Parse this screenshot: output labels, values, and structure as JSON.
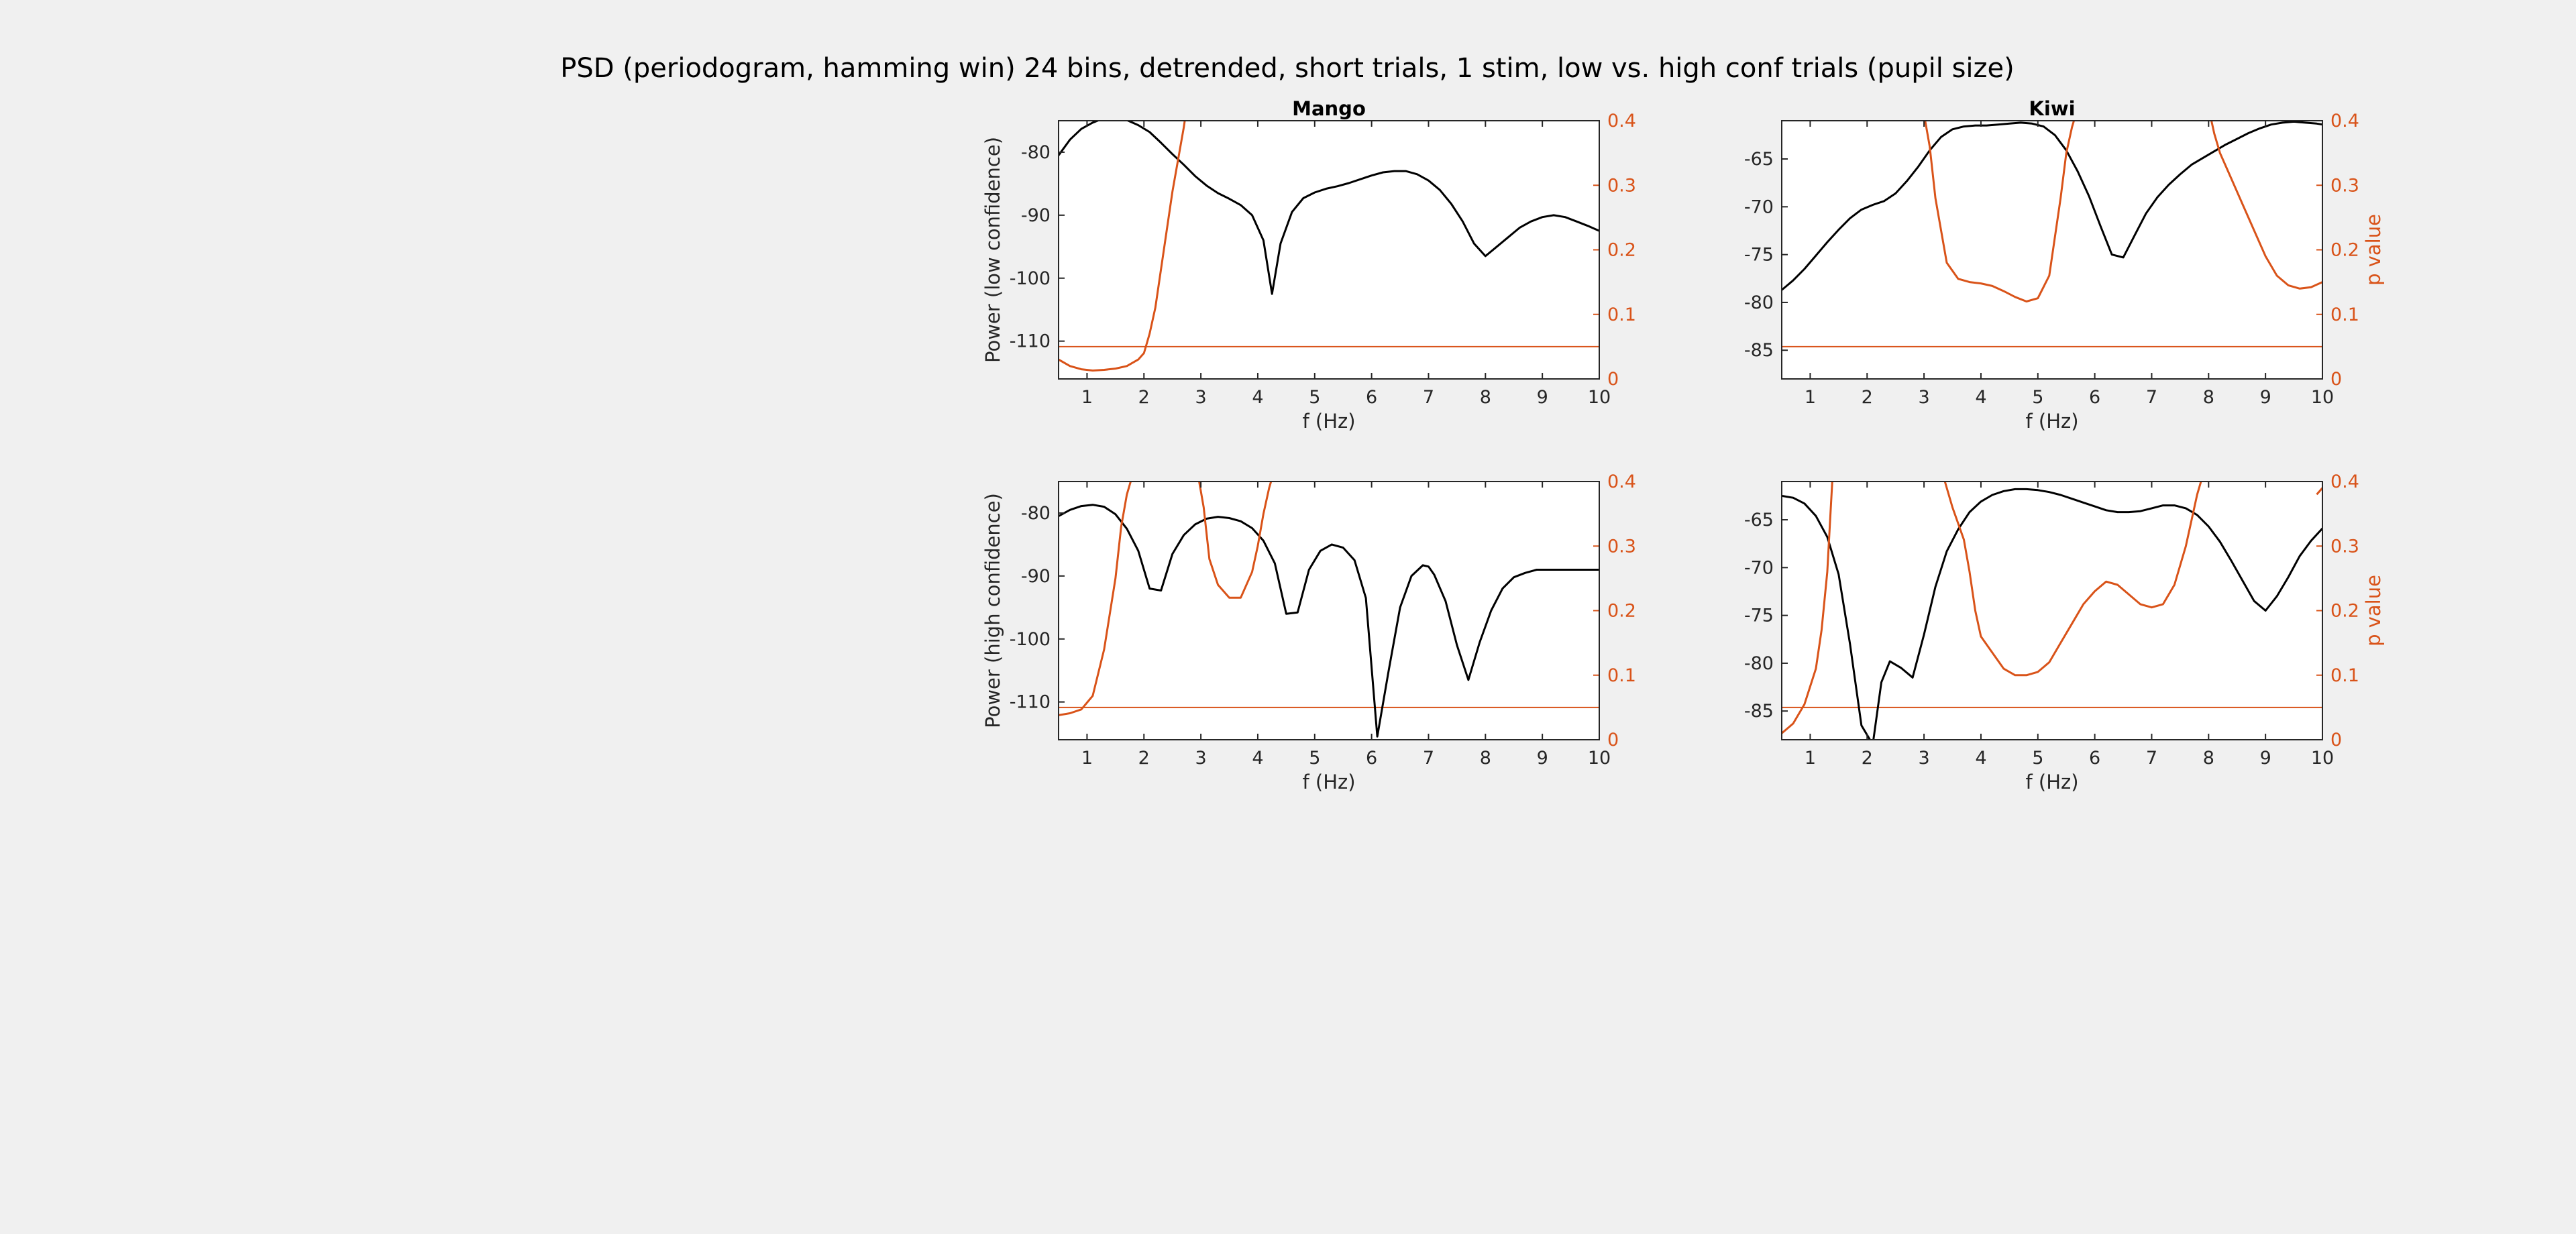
{
  "figure": {
    "title": "PSD (periodogram, hamming win) 24 bins, detrended, short trials, 1 stim, low vs. high conf trials (pupil size)"
  },
  "colors": {
    "background": "#f0f0f0",
    "axes_bg": "#ffffff",
    "power": "#000000",
    "pvalue": "#d95319"
  },
  "chart_data": [
    {
      "type": "line",
      "title": "Mango",
      "xlabel": "f (Hz)",
      "ylabel": "Power (low confidence)",
      "ylabel_right": "",
      "xlim": [
        0.5,
        10
      ],
      "ylim": [
        -116,
        -75
      ],
      "ylim_right": [
        0,
        0.4
      ],
      "xticks": [
        1,
        2,
        3,
        4,
        5,
        6,
        7,
        8,
        9,
        10
      ],
      "yticks": [
        -110,
        -100,
        -90,
        -80
      ],
      "yticks_right": [
        0,
        0.1,
        0.2,
        0.3,
        0.4
      ],
      "significance_threshold": 0.05,
      "series": [
        {
          "axis": "left",
          "x": [
            0.5,
            0.7,
            0.9,
            1.1,
            1.3,
            1.5,
            1.7,
            1.9,
            2.1,
            2.3,
            2.5,
            2.7,
            2.9,
            3.1,
            3.3,
            3.5,
            3.7,
            3.9,
            4.1,
            4.25,
            4.4,
            4.6,
            4.8,
            5.0,
            5.2,
            5.4,
            5.6,
            5.8,
            6.0,
            6.2,
            6.4,
            6.6,
            6.8,
            7.0,
            7.2,
            7.4,
            7.6,
            7.8,
            8.0,
            8.2,
            8.4,
            8.6,
            8.8,
            9.0,
            9.2,
            9.4,
            9.6,
            9.8,
            10.0
          ],
          "y": [
            -80.5,
            -78.0,
            -76.3,
            -75.3,
            -74.6,
            -74.5,
            -74.9,
            -75.7,
            -76.8,
            -78.5,
            -80.3,
            -82.0,
            -83.8,
            -85.3,
            -86.5,
            -87.4,
            -88.4,
            -90.0,
            -94.0,
            -102.5,
            -94.5,
            -89.5,
            -87.3,
            -86.4,
            -85.8,
            -85.4,
            -84.9,
            -84.3,
            -83.7,
            -83.2,
            -83.0,
            -83.0,
            -83.5,
            -84.5,
            -86.0,
            -88.2,
            -91.0,
            -94.5,
            -96.5,
            -95.0,
            -93.5,
            -92.0,
            -91.0,
            -90.3,
            -90.0,
            -90.3,
            -91.0,
            -91.7,
            -92.5
          ]
        },
        {
          "axis": "right",
          "x": [
            0.5,
            0.7,
            0.9,
            1.1,
            1.3,
            1.5,
            1.7,
            1.9,
            2.0,
            2.1,
            2.2,
            2.3,
            2.4,
            2.5,
            2.6,
            2.7,
            2.75
          ],
          "y": [
            0.03,
            0.02,
            0.015,
            0.013,
            0.014,
            0.016,
            0.02,
            0.03,
            0.04,
            0.07,
            0.11,
            0.17,
            0.23,
            0.29,
            0.34,
            0.39,
            0.42
          ]
        }
      ]
    },
    {
      "type": "line",
      "title": "Kiwi",
      "xlabel": "f (Hz)",
      "ylabel": "",
      "ylabel_right": "p value",
      "xlim": [
        0.5,
        10
      ],
      "ylim": [
        -88,
        -61
      ],
      "ylim_right": [
        0,
        0.4
      ],
      "xticks": [
        1,
        2,
        3,
        4,
        5,
        6,
        7,
        8,
        9,
        10
      ],
      "yticks": [
        -85,
        -80,
        -75,
        -70,
        -65
      ],
      "yticks_right": [
        0,
        0.1,
        0.2,
        0.3,
        0.4
      ],
      "significance_threshold": 0.05,
      "series": [
        {
          "axis": "left",
          "x": [
            0.5,
            0.7,
            0.9,
            1.1,
            1.3,
            1.5,
            1.7,
            1.9,
            2.1,
            2.3,
            2.5,
            2.7,
            2.9,
            3.1,
            3.3,
            3.5,
            3.7,
            3.9,
            4.1,
            4.3,
            4.5,
            4.7,
            4.9,
            5.1,
            5.3,
            5.5,
            5.7,
            5.9,
            6.1,
            6.3,
            6.5,
            6.7,
            6.9,
            7.1,
            7.3,
            7.5,
            7.7,
            7.9,
            8.1,
            8.3,
            8.5,
            8.7,
            8.9,
            9.1,
            9.3,
            9.5,
            9.7,
            9.9,
            10.0
          ],
          "y": [
            -78.7,
            -77.7,
            -76.5,
            -75.1,
            -73.7,
            -72.4,
            -71.2,
            -70.3,
            -69.8,
            -69.4,
            -68.6,
            -67.3,
            -65.8,
            -64.1,
            -62.7,
            -61.9,
            -61.6,
            -61.5,
            -61.5,
            -61.4,
            -61.3,
            -61.2,
            -61.3,
            -61.6,
            -62.5,
            -64.1,
            -66.3,
            -68.9,
            -72.0,
            -75.0,
            -75.3,
            -73.0,
            -70.7,
            -69.0,
            -67.7,
            -66.6,
            -65.6,
            -64.9,
            -64.2,
            -63.5,
            -62.9,
            -62.3,
            -61.8,
            -61.4,
            -61.2,
            -61.1,
            -61.2,
            -61.3,
            -61.4
          ]
        },
        {
          "axis": "right",
          "x": [
            3.0,
            3.1,
            3.2,
            3.4,
            3.6,
            3.8,
            4.0,
            4.2,
            4.4,
            4.6,
            4.8,
            5.0,
            5.2,
            5.4,
            5.5,
            5.6,
            5.7
          ],
          "y": [
            0.41,
            0.36,
            0.28,
            0.18,
            0.155,
            0.15,
            0.148,
            0.144,
            0.136,
            0.127,
            0.12,
            0.125,
            0.16,
            0.28,
            0.35,
            0.39,
            0.42
          ],
          "x2": [
            8.0,
            8.1,
            8.2,
            8.4,
            8.6,
            8.8,
            9.0,
            9.2,
            9.4,
            9.6,
            9.8,
            10.0
          ],
          "y2": [
            0.42,
            0.38,
            0.35,
            0.31,
            0.27,
            0.23,
            0.19,
            0.16,
            0.145,
            0.14,
            0.142,
            0.15
          ]
        }
      ]
    },
    {
      "type": "line",
      "title": "",
      "xlabel": "f (Hz)",
      "ylabel": "Power (high confidence)",
      "ylabel_right": "",
      "xlim": [
        0.5,
        10
      ],
      "ylim": [
        -116,
        -75
      ],
      "ylim_right": [
        0,
        0.4
      ],
      "xticks": [
        1,
        2,
        3,
        4,
        5,
        6,
        7,
        8,
        9,
        10
      ],
      "yticks": [
        -110,
        -100,
        -90,
        -80
      ],
      "yticks_right": [
        0,
        0.1,
        0.2,
        0.3,
        0.4
      ],
      "significance_threshold": 0.05,
      "series": [
        {
          "axis": "left",
          "x": [
            0.5,
            0.7,
            0.9,
            1.1,
            1.3,
            1.5,
            1.7,
            1.9,
            2.1,
            2.3,
            2.5,
            2.7,
            2.9,
            3.1,
            3.3,
            3.5,
            3.7,
            3.9,
            4.1,
            4.3,
            4.5,
            4.7,
            4.9,
            5.1,
            5.3,
            5.5,
            5.7,
            5.9,
            6.1,
            6.3,
            6.5,
            6.7,
            6.9,
            7.0,
            7.1,
            7.3,
            7.5,
            7.7,
            7.9,
            8.1,
            8.3,
            8.5,
            8.7,
            8.9,
            9.0,
            9.1,
            9.3,
            9.5,
            9.7,
            9.9,
            10.0
          ],
          "y": [
            -80.5,
            -79.5,
            -78.9,
            -78.7,
            -79.0,
            -80.2,
            -82.5,
            -86.0,
            -92.0,
            -92.3,
            -86.5,
            -83.5,
            -81.8,
            -80.9,
            -80.6,
            -80.8,
            -81.3,
            -82.4,
            -84.4,
            -88.0,
            -96.0,
            -95.8,
            -89.0,
            -86.0,
            -85.0,
            -85.5,
            -87.5,
            -93.5,
            -115.5,
            -105.0,
            -95.0,
            -90.0,
            -88.3,
            -88.5,
            -89.8,
            -94.0,
            -101.0,
            -106.5,
            -100.5,
            -95.5,
            -92.0,
            -90.2,
            -89.5,
            -89.0,
            -89.0,
            -89.0,
            -89.0,
            -89.0,
            -89.0,
            -89.0,
            -89.0
          ]
        },
        {
          "axis": "right",
          "x": [
            0.5,
            0.7,
            0.9,
            1.1,
            1.3,
            1.5,
            1.6,
            1.7,
            1.8,
            1.85
          ],
          "y": [
            0.038,
            0.041,
            0.047,
            0.068,
            0.14,
            0.25,
            0.33,
            0.38,
            0.41,
            0.42
          ],
          "x2": [
            2.95,
            3.05,
            3.15,
            3.3,
            3.5,
            3.7,
            3.9,
            4.0,
            4.1,
            4.2,
            4.3
          ],
          "y2": [
            0.41,
            0.36,
            0.28,
            0.24,
            0.22,
            0.22,
            0.26,
            0.3,
            0.35,
            0.39,
            0.42
          ]
        }
      ]
    },
    {
      "type": "line",
      "title": "",
      "xlabel": "f (Hz)",
      "ylabel": "",
      "ylabel_right": "p value",
      "xlim": [
        0.5,
        10
      ],
      "ylim": [
        -88,
        -61
      ],
      "ylim_right": [
        0,
        0.4
      ],
      "xticks": [
        1,
        2,
        3,
        4,
        5,
        6,
        7,
        8,
        9,
        10
      ],
      "yticks": [
        -85,
        -80,
        -75,
        -70,
        -65
      ],
      "yticks_right": [
        0,
        0.1,
        0.2,
        0.3,
        0.4
      ],
      "significance_threshold": 0.05,
      "series": [
        {
          "axis": "left",
          "x": [
            0.5,
            0.7,
            0.9,
            1.1,
            1.3,
            1.5,
            1.7,
            1.9,
            2.1,
            2.25,
            2.4,
            2.6,
            2.8,
            3.0,
            3.2,
            3.4,
            3.6,
            3.8,
            4.0,
            4.2,
            4.4,
            4.6,
            4.8,
            5.0,
            5.2,
            5.4,
            5.6,
            5.8,
            6.0,
            6.2,
            6.4,
            6.6,
            6.8,
            7.0,
            7.2,
            7.4,
            7.6,
            7.8,
            8.0,
            8.2,
            8.4,
            8.6,
            8.8,
            9.0,
            9.2,
            9.4,
            9.6,
            9.8,
            10.0
          ],
          "y": [
            -62.5,
            -62.7,
            -63.3,
            -64.6,
            -66.8,
            -70.7,
            -78.0,
            -86.5,
            -88.5,
            -82.0,
            -79.8,
            -80.5,
            -81.5,
            -77.0,
            -72.0,
            -68.3,
            -66.0,
            -64.2,
            -63.1,
            -62.4,
            -62.0,
            -61.8,
            -61.8,
            -61.9,
            -62.1,
            -62.4,
            -62.8,
            -63.2,
            -63.6,
            -64.0,
            -64.2,
            -64.2,
            -64.1,
            -63.8,
            -63.5,
            -63.5,
            -63.8,
            -64.5,
            -65.7,
            -67.3,
            -69.3,
            -71.4,
            -73.5,
            -74.5,
            -73.0,
            -71.0,
            -68.8,
            -67.2,
            -65.9
          ]
        },
        {
          "axis": "right",
          "x": [
            0.5,
            0.7,
            0.9,
            1.1,
            1.2,
            1.3,
            1.35,
            1.4
          ],
          "y": [
            0.01,
            0.025,
            0.055,
            0.11,
            0.17,
            0.26,
            0.34,
            0.42
          ],
          "x2": [
            3.3,
            3.5,
            3.7,
            3.8,
            3.9,
            4.0,
            4.2,
            4.4,
            4.6,
            4.8,
            5.0,
            5.2,
            5.4,
            5.6,
            5.8,
            6.0,
            6.2,
            6.4,
            6.6,
            6.8,
            7.0,
            7.2,
            7.4,
            7.6,
            7.8,
            7.9,
            8.0
          ],
          "y2": [
            0.42,
            0.36,
            0.31,
            0.26,
            0.2,
            0.16,
            0.135,
            0.11,
            0.1,
            0.1,
            0.105,
            0.12,
            0.15,
            0.18,
            0.21,
            0.23,
            0.245,
            0.24,
            0.225,
            0.21,
            0.205,
            0.21,
            0.24,
            0.3,
            0.38,
            0.41,
            0.42
          ],
          "x3": [
            9.9,
            10.0
          ],
          "y3": [
            0.38,
            0.39
          ]
        }
      ]
    }
  ]
}
